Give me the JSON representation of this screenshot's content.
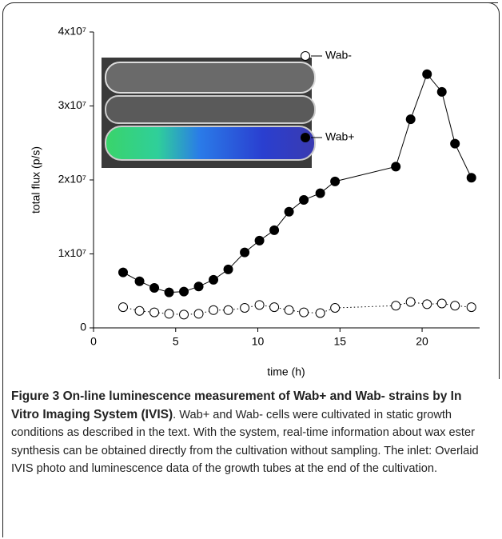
{
  "chart_data": {
    "type": "scatter-line",
    "x_label": "time (h)",
    "y_label": "total flux (p/s)",
    "x": [
      1.8,
      2.8,
      3.7,
      4.6,
      5.5,
      6.4,
      7.3,
      8.2,
      9.2,
      10.1,
      11.0,
      11.9,
      12.8,
      13.8,
      14.7,
      18.4,
      19.3,
      20.3,
      21.2,
      22.0,
      23.0
    ],
    "series": [
      {
        "name": "Wab-",
        "color": "#000000",
        "filled": false,
        "values": [
          2800000,
          2300000,
          2100000,
          1900000,
          1800000,
          1900000,
          2400000,
          2400000,
          2700000,
          3100000,
          2800000,
          2400000,
          2100000,
          2000000,
          2700000,
          3000000,
          3500000,
          3200000,
          3300000,
          3000000,
          2800000
        ]
      },
      {
        "name": "Wab+",
        "color": "#000000",
        "filled": true,
        "values": [
          7500000,
          6300000,
          5400000,
          4800000,
          4900000,
          5600000,
          6500000,
          7900000,
          10200000,
          11800000,
          13200000,
          15700000,
          17300000,
          18200000,
          19800000,
          21800000,
          28200000,
          34300000,
          31900000,
          24900000,
          20300000
        ]
      }
    ],
    "xlim": [
      0,
      23.5
    ],
    "xticks": [
      0,
      5,
      10,
      15,
      20
    ],
    "ylim": [
      0,
      40000000
    ],
    "yticks": [
      0,
      {
        "value": 10000000,
        "label": "1x10⁷"
      },
      {
        "value": 20000000,
        "label": "2x10⁷"
      },
      {
        "value": 30000000,
        "label": "3x10⁷"
      },
      {
        "value": 40000000,
        "label": "4x10⁷"
      }
    ],
    "caption_title": "Figure 3 On-line luminescence measurement of Wab+ and Wab- strains by In Vitro Imaging System (IVIS)",
    "caption_text": ". Wab+ and Wab- cells were cultivated in static growth conditions as described in the text. With the system, real-time information about wax ester synthesis can be obtained directly from the cultivation without sampling. The inlet: Overlaid IVIS photo and luminescence data of the growth tubes at the end of the cultivation."
  }
}
